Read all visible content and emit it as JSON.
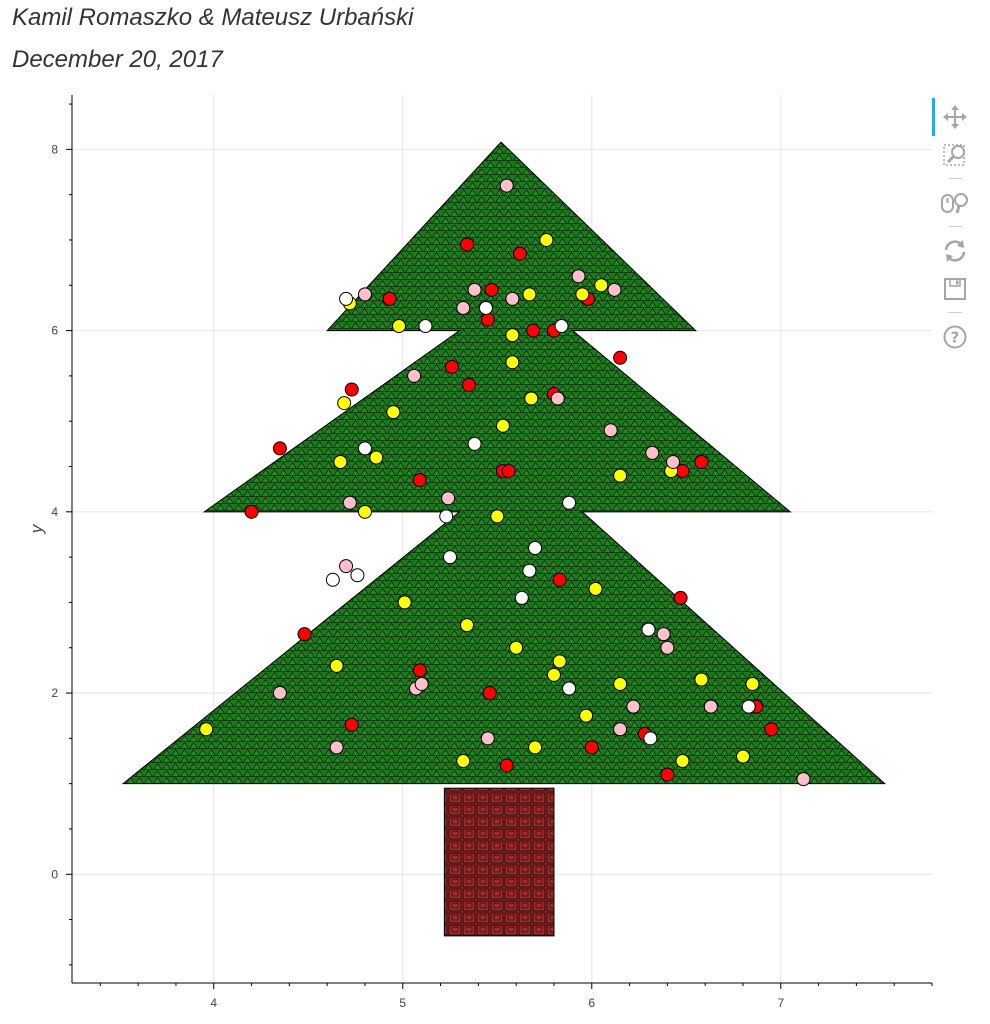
{
  "header": {
    "line1": "Kamil Romaszko & Mateusz Urbański",
    "line2": "December 20, 2017"
  },
  "toolbar": {
    "tools": [
      "pan-icon",
      "box-zoom-icon",
      "wheel-zoom-icon",
      "reset-icon",
      "save-icon",
      "help-icon"
    ],
    "active_color": "#26aae1",
    "icon_color": "#a6a6a6"
  },
  "chart_data": {
    "type": "scatter",
    "xlabel": "",
    "ylabel": "y",
    "xlim": [
      3.25,
      7.8
    ],
    "ylim": [
      -1.2,
      8.6
    ],
    "x_ticks": [
      4,
      5,
      6,
      7
    ],
    "y_ticks": [
      0,
      2,
      4,
      6,
      8
    ],
    "grid": true,
    "colors": {
      "tree_fill": "#1a7a1a",
      "trunk_fill": "#a52a2a",
      "outline": "#000000"
    },
    "tree_polygons": [
      [
        [
          3.52,
          1.0
        ],
        [
          5.3,
          4.0
        ],
        [
          3.95,
          4.0
        ],
        [
          5.3,
          6.0
        ],
        [
          4.6,
          6.0
        ],
        [
          5.52,
          8.08
        ],
        [
          6.55,
          6.0
        ],
        [
          5.9,
          6.0
        ],
        [
          7.05,
          4.0
        ],
        [
          5.95,
          4.0
        ],
        [
          7.55,
          1.0
        ]
      ]
    ],
    "trunk": {
      "x0": 5.22,
      "x1": 5.8,
      "y0": -0.68,
      "y1": 0.95
    },
    "series": [
      {
        "color": "#ff0000",
        "points": [
          [
            5.34,
            6.95
          ],
          [
            5.62,
            6.85
          ],
          [
            5.47,
            6.45
          ],
          [
            4.93,
            6.35
          ],
          [
            5.98,
            6.35
          ],
          [
            5.45,
            6.12
          ],
          [
            5.69,
            6.0
          ],
          [
            5.8,
            6.0
          ],
          [
            6.15,
            5.7
          ],
          [
            5.26,
            5.6
          ],
          [
            4.73,
            5.35
          ],
          [
            5.35,
            5.4
          ],
          [
            5.8,
            5.3
          ],
          [
            4.35,
            4.7
          ],
          [
            5.53,
            4.45
          ],
          [
            5.56,
            4.45
          ],
          [
            6.48,
            4.45
          ],
          [
            6.58,
            4.55
          ],
          [
            5.09,
            4.35
          ],
          [
            4.2,
            4.0
          ],
          [
            5.83,
            3.25
          ],
          [
            6.47,
            3.05
          ],
          [
            4.48,
            2.65
          ],
          [
            5.09,
            2.25
          ],
          [
            5.46,
            2.0
          ],
          [
            4.73,
            1.65
          ],
          [
            6.87,
            1.85
          ],
          [
            6.28,
            1.55
          ],
          [
            6.95,
            1.6
          ],
          [
            6.0,
            1.4
          ],
          [
            5.55,
            1.2
          ],
          [
            6.4,
            1.1
          ]
        ]
      },
      {
        "color": "#ffff00",
        "points": [
          [
            5.76,
            7.0
          ],
          [
            4.72,
            6.3
          ],
          [
            5.67,
            6.4
          ],
          [
            5.95,
            6.4
          ],
          [
            6.05,
            6.5
          ],
          [
            4.98,
            6.05
          ],
          [
            5.58,
            5.95
          ],
          [
            5.58,
            5.65
          ],
          [
            4.69,
            5.2
          ],
          [
            5.68,
            5.25
          ],
          [
            4.95,
            5.1
          ],
          [
            5.53,
            4.95
          ],
          [
            4.67,
            4.55
          ],
          [
            4.86,
            4.6
          ],
          [
            6.15,
            4.4
          ],
          [
            6.42,
            4.45
          ],
          [
            4.8,
            4.0
          ],
          [
            5.5,
            3.95
          ],
          [
            6.02,
            3.15
          ],
          [
            5.01,
            3.0
          ],
          [
            5.34,
            2.75
          ],
          [
            5.6,
            2.5
          ],
          [
            5.83,
            2.35
          ],
          [
            4.65,
            2.3
          ],
          [
            5.8,
            2.2
          ],
          [
            6.58,
            2.15
          ],
          [
            6.15,
            2.1
          ],
          [
            6.85,
            2.1
          ],
          [
            3.96,
            1.6
          ],
          [
            5.97,
            1.75
          ],
          [
            5.7,
            1.4
          ],
          [
            6.8,
            1.3
          ],
          [
            5.32,
            1.25
          ],
          [
            6.48,
            1.25
          ]
        ]
      },
      {
        "color": "#ffc0cb",
        "points": [
          [
            5.55,
            7.6
          ],
          [
            5.93,
            6.6
          ],
          [
            4.8,
            6.4
          ],
          [
            5.38,
            6.45
          ],
          [
            6.12,
            6.45
          ],
          [
            5.32,
            6.25
          ],
          [
            5.58,
            6.35
          ],
          [
            5.06,
            5.5
          ],
          [
            5.82,
            5.25
          ],
          [
            6.1,
            4.9
          ],
          [
            6.32,
            4.65
          ],
          [
            6.43,
            4.55
          ],
          [
            5.24,
            4.15
          ],
          [
            4.72,
            4.1
          ],
          [
            4.7,
            3.4
          ],
          [
            6.38,
            2.65
          ],
          [
            6.4,
            2.5
          ],
          [
            4.35,
            2.0
          ],
          [
            5.07,
            2.05
          ],
          [
            5.1,
            2.1
          ],
          [
            6.22,
            1.85
          ],
          [
            6.63,
            1.85
          ],
          [
            6.15,
            1.6
          ],
          [
            5.45,
            1.5
          ],
          [
            4.65,
            1.4
          ],
          [
            7.12,
            1.05
          ]
        ]
      },
      {
        "color": "#ffffff",
        "points": [
          [
            4.7,
            6.35
          ],
          [
            5.12,
            6.05
          ],
          [
            5.44,
            6.25
          ],
          [
            5.84,
            6.05
          ],
          [
            4.8,
            4.7
          ],
          [
            5.38,
            4.75
          ],
          [
            5.88,
            4.1
          ],
          [
            5.23,
            3.95
          ],
          [
            5.25,
            3.5
          ],
          [
            5.7,
            3.6
          ],
          [
            5.67,
            3.35
          ],
          [
            4.63,
            3.25
          ],
          [
            4.76,
            3.3
          ],
          [
            5.63,
            3.05
          ],
          [
            6.3,
            2.7
          ],
          [
            5.88,
            2.05
          ],
          [
            6.83,
            1.85
          ],
          [
            6.31,
            1.5
          ]
        ]
      }
    ]
  }
}
